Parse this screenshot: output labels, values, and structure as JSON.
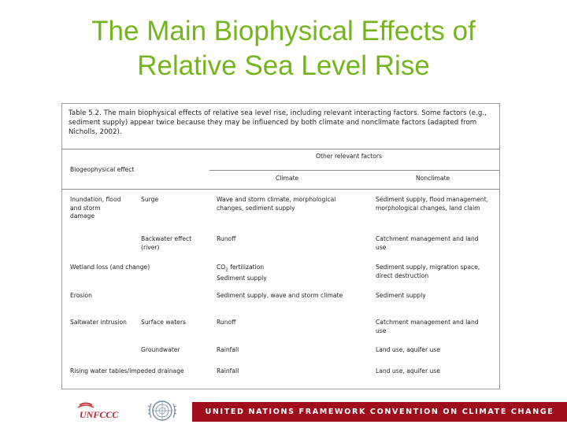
{
  "slide": {
    "title_line1": "The Main Biophysical Effects of",
    "title_line2": "Relative Sea Level Rise"
  },
  "table": {
    "caption": "Table 5.2. The main biophysical effects of relative sea level rise, including relevant interacting factors. Some factors (e.g., sediment supply) appear twice because they may be influenced by both climate and nonclimate factors (adapted from Nicholls, 2002).",
    "header": {
      "biogeophysical_effect": "Biogeophysical effect",
      "other_relevant_factors": "Other relevant factors",
      "climate": "Climate",
      "nonclimate": "Nonclimate"
    },
    "rows": [
      {
        "effect": "Inundation, flood and storm damage",
        "sub_effect": "Surge",
        "climate": "Wave and storm climate, morphological changes, sediment supply",
        "nonclimate": "Sediment supply, flood management, morphological changes, land claim"
      },
      {
        "effect": "",
        "sub_effect": "Backwater effect (river)",
        "climate": "Runoff",
        "nonclimate": "Catchment management and land use"
      },
      {
        "effect": "Wetland loss (and change)",
        "sub_effect": "",
        "climate_main": "CO",
        "climate_sub": "2",
        "climate_rest": " fertilization",
        "climate_line2": "Sediment supply",
        "nonclimate": "Sediment supply, migration space, direct destruction"
      },
      {
        "effect": "Erosion",
        "sub_effect": "",
        "climate": "Sediment supply, wave and storm climate",
        "nonclimate": "Sediment supply"
      },
      {
        "effect": "Saltwater intrusion",
        "sub_effect": "Surface waters",
        "climate": "Runoff",
        "nonclimate": "Catchment management and land use"
      },
      {
        "effect": "",
        "sub_effect": "Groundwater",
        "climate": "Rainfall",
        "nonclimate": "Land use, aquifer use"
      },
      {
        "effect": "Rising water tables/impeded drainage",
        "sub_effect": "",
        "climate": "Rainfall",
        "nonclimate": "Land use, aquifer use"
      }
    ]
  },
  "footer": {
    "banner_text": "UNITED NATIONS FRAMEWORK CONVENTION ON CLIMATE CHANGE",
    "unfccc_logo_text": "UNFCCC",
    "banner_color": "#a00d1a",
    "title_color": "#74b51c"
  }
}
